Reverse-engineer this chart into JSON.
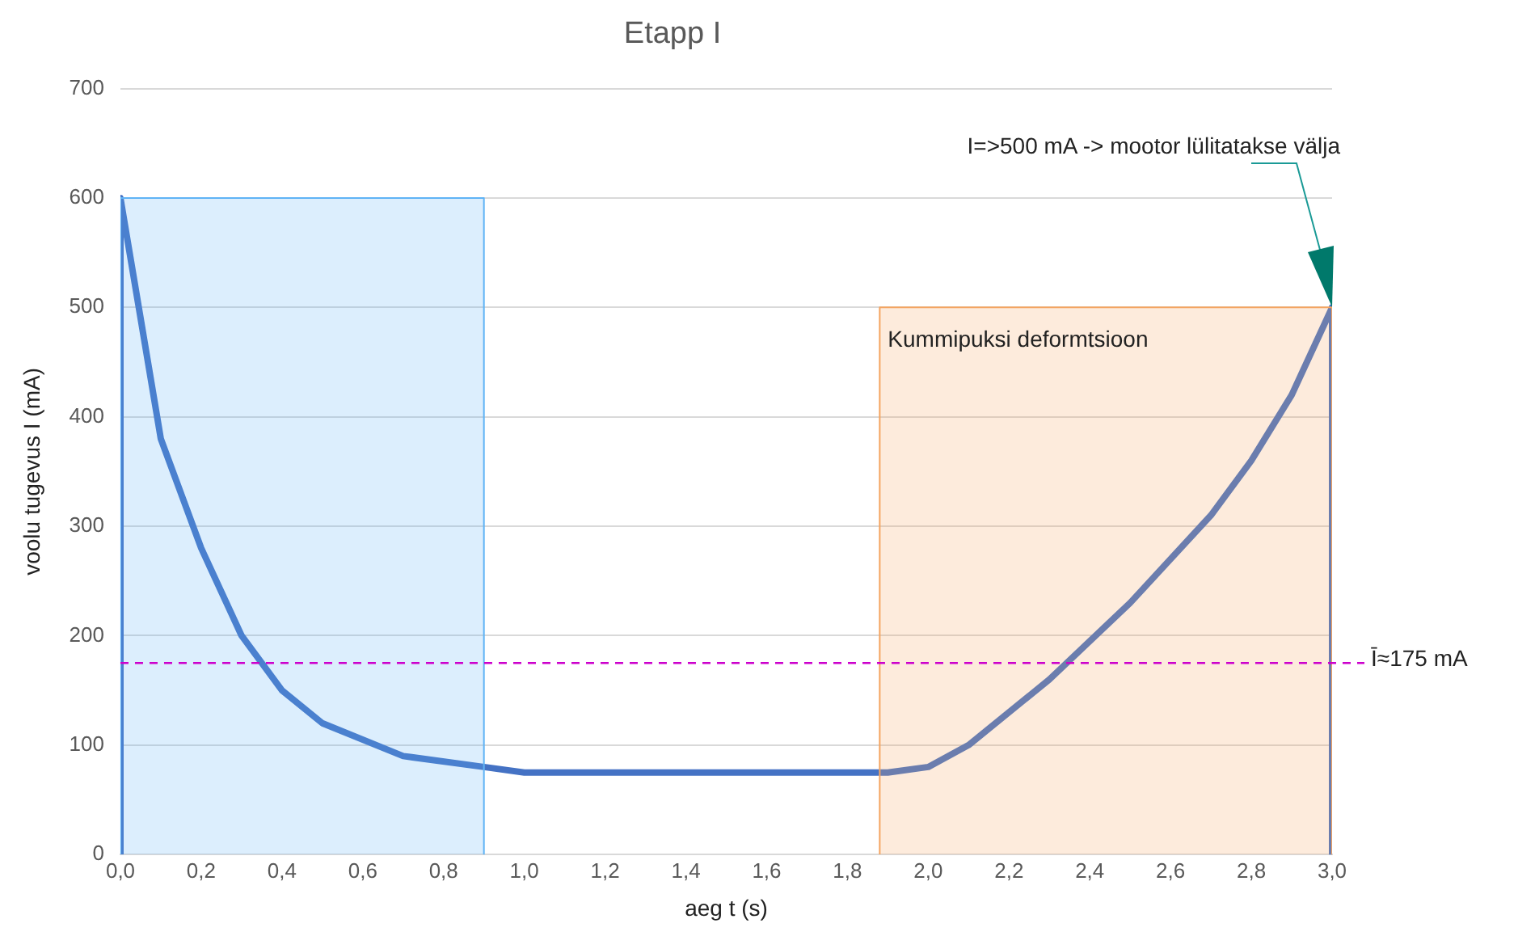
{
  "chart_data": {
    "type": "line",
    "title": "Etapp I",
    "xlabel": "aeg t (s)",
    "ylabel": "voolu tugevus I (mA)",
    "xlim": [
      0,
      3
    ],
    "ylim": [
      0,
      700
    ],
    "xticks": [
      {
        "value": 0,
        "label": "0,0"
      },
      {
        "value": 0.2,
        "label": "0,2"
      },
      {
        "value": 0.4,
        "label": "0,4"
      },
      {
        "value": 0.6,
        "label": "0,6"
      },
      {
        "value": 0.8,
        "label": "0,8"
      },
      {
        "value": 1,
        "label": "1,0"
      },
      {
        "value": 1.2,
        "label": "1,2"
      },
      {
        "value": 1.4,
        "label": "1,4"
      },
      {
        "value": 1.6,
        "label": "1,6"
      },
      {
        "value": 1.8,
        "label": "1,8"
      },
      {
        "value": 2,
        "label": "2,0"
      },
      {
        "value": 2.2,
        "label": "2,2"
      },
      {
        "value": 2.4,
        "label": "2,4"
      },
      {
        "value": 2.6,
        "label": "2,6"
      },
      {
        "value": 2.8,
        "label": "2,8"
      },
      {
        "value": 3,
        "label": "3,0"
      }
    ],
    "yticks": [
      0,
      100,
      200,
      300,
      400,
      500,
      600,
      700
    ],
    "grid": "y",
    "legend": false,
    "marker": "none",
    "series": [
      {
        "type": "area",
        "color": "#5fb3f5",
        "x": [
          0,
          0,
          0.9,
          0.9
        ],
        "values": [
          0,
          600,
          600,
          0
        ]
      },
      {
        "type": "area",
        "color": "#f4a460",
        "x": [
          1.88,
          1.88,
          3,
          3
        ],
        "values": [
          0,
          500,
          500,
          0
        ]
      },
      {
        "type": "line",
        "color": "#4472c4",
        "x": [
          0,
          0,
          0.1,
          0.2,
          0.3,
          0.4,
          0.5,
          0.7,
          0.9,
          1.0,
          1.9,
          2.0,
          2.1,
          2.3,
          2.5,
          2.7,
          2.8,
          2.9,
          3.0,
          3.0
        ],
        "values": [
          0,
          600,
          380,
          280,
          200,
          150,
          120,
          90,
          80,
          75,
          75,
          80,
          100,
          160,
          230,
          310,
          360,
          420,
          500,
          0
        ]
      }
    ],
    "ref_lines": [
      {
        "axis": "y",
        "value": 175,
        "label": "Ī≈175 mA",
        "color": "#cc00cc",
        "line_style": "dashed"
      }
    ],
    "annotations": [
      "I=>500 mA -> mootor lülitatakse välja",
      {
        "text": "Kummipuksi deformtsioon",
        "x": 1.9,
        "y": 470
      }
    ]
  }
}
